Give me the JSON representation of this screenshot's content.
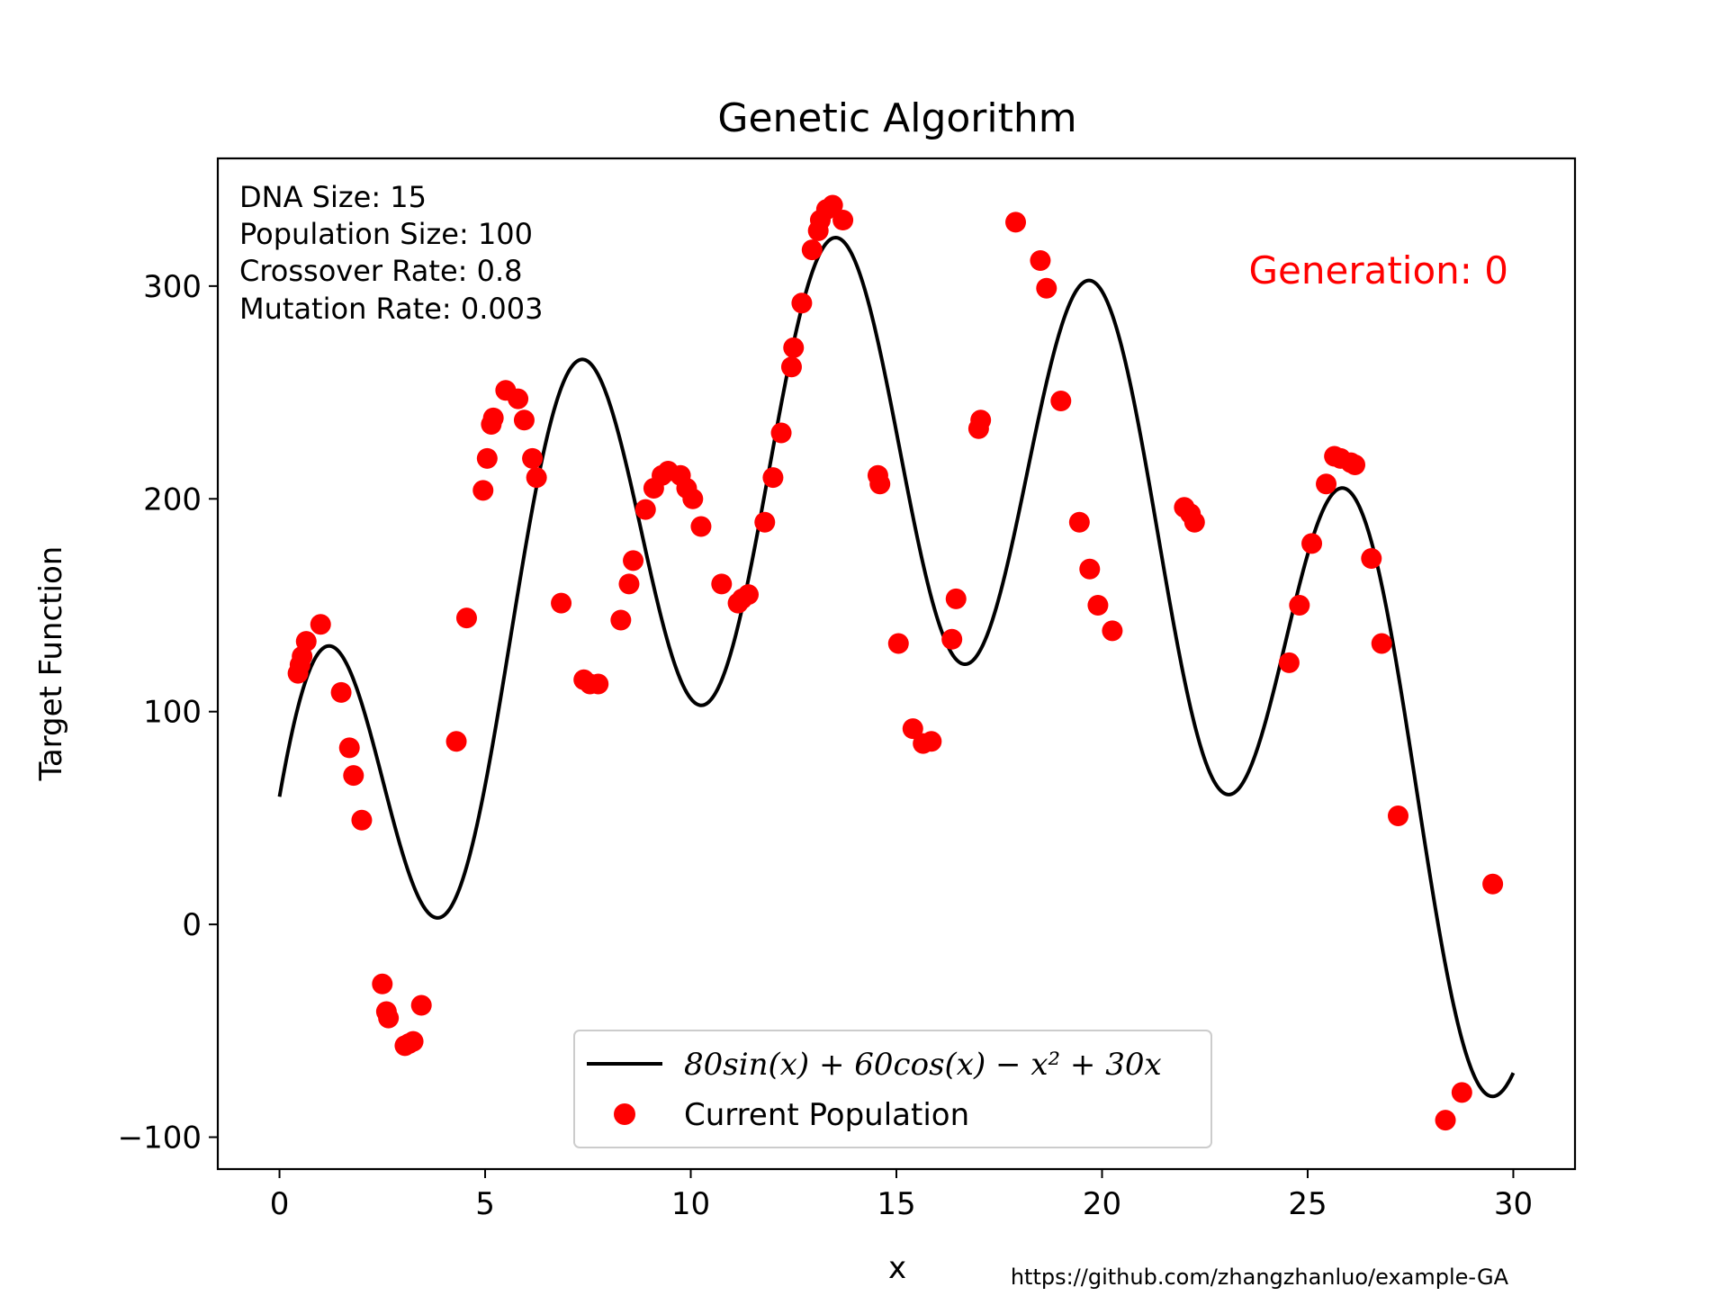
{
  "chart_data": {
    "type": "line",
    "title": "Genetic Algorithm",
    "xlabel": "x",
    "ylabel": "Target Function",
    "xlim": [
      -1.5,
      31.5
    ],
    "ylim": [
      -115,
      360
    ],
    "x_ticks": [
      0,
      5,
      10,
      15,
      20,
      25,
      30
    ],
    "x_tick_labels": [
      "0",
      "5",
      "10",
      "15",
      "20",
      "25",
      "30"
    ],
    "y_ticks": [
      -100,
      0,
      100,
      200,
      300
    ],
    "y_tick_labels": [
      "−100",
      "0",
      "100",
      "200",
      "300"
    ],
    "grid": false,
    "legend_position": "lower-center",
    "info_lines": [
      "DNA Size: 15",
      "Population Size: 100",
      "Crossover Rate: 0.8",
      "Mutation Rate: 0.003"
    ],
    "generation_text": "Generation: 0",
    "footer_url": "https://github.com/zhangzhanluo/example-GA",
    "colors": {
      "curve": "#000000",
      "population": "#ff0000",
      "generation": "#ff0000"
    },
    "series": [
      {
        "name": "80sin(x) + 60cos(x) − x² + 30x",
        "type": "line",
        "function": {
          "sin_coef": 80,
          "cos_coef": 60,
          "x2_coef": -1,
          "x_coef": 30
        },
        "x_range": [
          0,
          30
        ]
      },
      {
        "name": "Current Population",
        "type": "scatter",
        "x": [
          0.45,
          0.5,
          0.55,
          0.65,
          1.0,
          1.5,
          1.7,
          1.8,
          2.0,
          2.5,
          2.6,
          2.65,
          3.05,
          3.15,
          3.25,
          3.45,
          4.3,
          4.55,
          4.95,
          5.05,
          5.15,
          5.2,
          5.5,
          5.8,
          5.95,
          6.15,
          6.25,
          6.85,
          7.4,
          7.55,
          7.75,
          8.3,
          8.5,
          8.6,
          8.9,
          9.1,
          9.3,
          9.45,
          9.75,
          9.9,
          10.05,
          10.25,
          10.75,
          11.15,
          11.25,
          11.4,
          11.8,
          12.0,
          12.2,
          12.45,
          12.5,
          12.7,
          12.95,
          13.1,
          13.15,
          13.3,
          13.45,
          13.7,
          14.55,
          14.6,
          15.05,
          15.4,
          15.65,
          15.85,
          16.35,
          16.45,
          17.0,
          17.05,
          17.9,
          18.5,
          18.65,
          19.0,
          19.45,
          19.7,
          19.9,
          20.25,
          22.0,
          22.15,
          22.25,
          24.55,
          24.8,
          25.1,
          25.45,
          25.65,
          25.8,
          26.05,
          26.15,
          26.55,
          26.8,
          27.2,
          28.35,
          28.75,
          29.5
        ],
        "y": [
          118,
          122,
          126,
          133,
          141,
          109,
          83,
          70,
          49,
          -28,
          -41,
          -44,
          -57,
          -56,
          -55,
          -38,
          86,
          144,
          204,
          219,
          235,
          238,
          251,
          247,
          237,
          219,
          210,
          151,
          115,
          113,
          113,
          143,
          160,
          171,
          195,
          205,
          211,
          213,
          211,
          205,
          200,
          187,
          160,
          151,
          153,
          155,
          189,
          210,
          231,
          262,
          271,
          292,
          317,
          326,
          331,
          336,
          338,
          331,
          211,
          207,
          132,
          92,
          85,
          86,
          134,
          153,
          233,
          237,
          330,
          312,
          299,
          246,
          189,
          167,
          150,
          138,
          196,
          193,
          189,
          123,
          150,
          179,
          207,
          220,
          219,
          217,
          216,
          172,
          132,
          51,
          -92,
          -79,
          19
        ]
      }
    ]
  }
}
